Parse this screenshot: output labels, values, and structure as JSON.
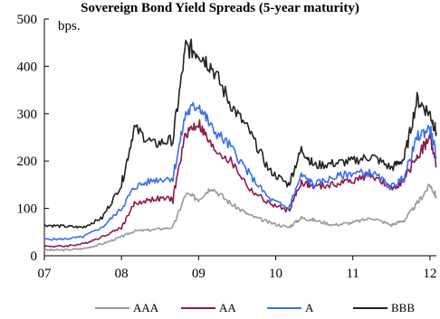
{
  "chart_data": {
    "type": "line",
    "title": "Sovereign Bond Yield Spreads (5-year maturity)",
    "ylabel": "bps.",
    "xlabel": "",
    "ylim": [
      0,
      500
    ],
    "xlim": [
      "2007-01",
      "2012-02"
    ],
    "yticks": [
      "0",
      "100",
      "200",
      "300",
      "400",
      "500"
    ],
    "xticks": [
      {
        "label": "07",
        "at": "2007-01"
      },
      {
        "label": "08",
        "at": "2008-01"
      },
      {
        "label": "09",
        "at": "2009-01"
      },
      {
        "label": "10",
        "at": "2010-01"
      },
      {
        "label": "11",
        "at": "2011-01"
      },
      {
        "label": "12",
        "at": "2012-01"
      }
    ],
    "x": [
      "2007-01",
      "2007-04",
      "2007-07",
      "2007-10",
      "2008-01",
      "2008-03",
      "2008-06",
      "2008-09",
      "2008-11",
      "2009-01",
      "2009-03",
      "2009-06",
      "2009-09",
      "2009-12",
      "2010-03",
      "2010-05",
      "2010-07",
      "2010-10",
      "2011-01",
      "2011-04",
      "2011-07",
      "2011-09",
      "2011-11",
      "2012-01",
      "2012-02"
    ],
    "series": [
      {
        "name": "AAA",
        "color": "#999999",
        "values": [
          12,
          12,
          15,
          25,
          40,
          52,
          55,
          60,
          130,
          120,
          145,
          110,
          85,
          70,
          60,
          80,
          75,
          65,
          70,
          80,
          65,
          75,
          110,
          150,
          125
        ]
      },
      {
        "name": "AA",
        "color": "#8b1a4a",
        "values": [
          20,
          20,
          25,
          40,
          60,
          110,
          120,
          120,
          260,
          280,
          230,
          200,
          140,
          110,
          95,
          155,
          145,
          150,
          160,
          170,
          140,
          160,
          210,
          250,
          190
        ]
      },
      {
        "name": "A",
        "color": "#3a6df0",
        "values": [
          35,
          35,
          40,
          60,
          100,
          145,
          160,
          165,
          300,
          320,
          270,
          230,
          170,
          120,
          100,
          170,
          150,
          165,
          175,
          175,
          145,
          165,
          250,
          270,
          210
        ]
      },
      {
        "name": "BBB",
        "color": "#222222",
        "values": [
          65,
          62,
          60,
          80,
          150,
          270,
          235,
          245,
          440,
          430,
          400,
          320,
          260,
          180,
          150,
          225,
          190,
          195,
          200,
          210,
          185,
          205,
          330,
          300,
          260
        ]
      }
    ]
  }
}
